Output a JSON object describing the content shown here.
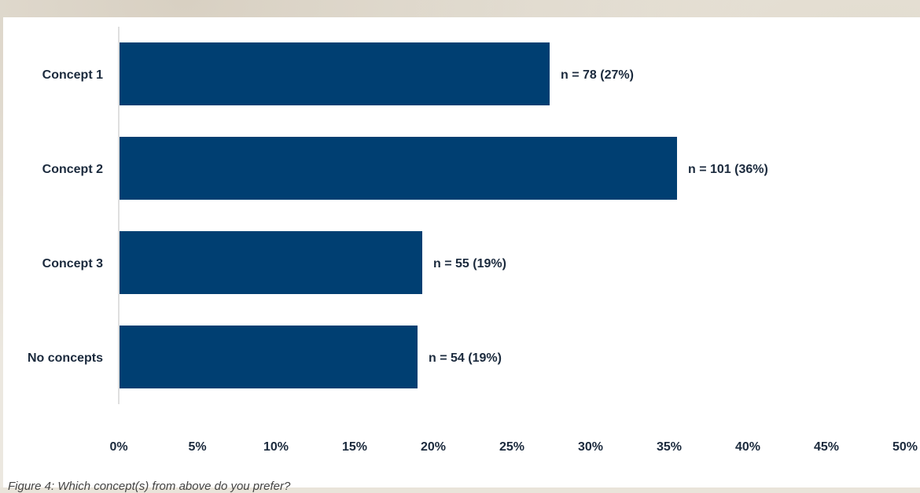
{
  "caption": "Figure 4: Which concept(s) from above do you prefer?",
  "colors": {
    "bar": "#003f72",
    "axis": "#bfbfbf",
    "text": "#1b2a3d"
  },
  "chart_data": {
    "type": "bar",
    "orientation": "horizontal",
    "title": "",
    "xlabel": "",
    "ylabel": "",
    "categories": [
      "Concept 1",
      "Concept 2",
      "Concept 3",
      "No concepts"
    ],
    "values": [
      27.4,
      35.5,
      19.3,
      19.0
    ],
    "data_labels": [
      "n = 78 (27%)",
      "n = 101 (36%)",
      "n = 55 (19%)",
      "n = 54 (19%)"
    ],
    "xlim": [
      0,
      50
    ],
    "x_ticks": [
      "0%",
      "5%",
      "10%",
      "15%",
      "20%",
      "25%",
      "30%",
      "35%",
      "40%",
      "45%",
      "50%"
    ],
    "grid": false,
    "legend": "none"
  }
}
